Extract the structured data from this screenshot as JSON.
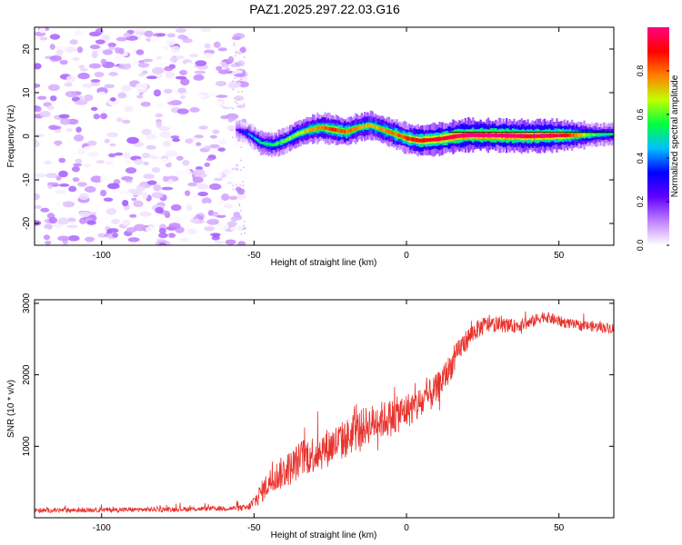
{
  "title": "PAZ1.2025.297.22.03.G16",
  "chart_data": [
    {
      "type": "heatmap",
      "name": "spectrogram",
      "xlabel": "Height of straight line (km)",
      "ylabel": "Frequency (Hz)",
      "xlim": [
        -122,
        68
      ],
      "ylim": [
        -25,
        25
      ],
      "xticks": [
        -100,
        -50,
        0,
        50
      ],
      "xtick_labels": [
        "-100",
        "-50",
        "0",
        "50"
      ],
      "yticks": [
        -20,
        -10,
        0,
        10,
        20
      ],
      "ytick_labels": [
        "-20",
        "-10",
        "0",
        "10",
        "20"
      ],
      "noise_region": {
        "x": [
          -122,
          -53
        ],
        "y": [
          -25,
          25
        ],
        "amplitude_range": [
          0.0,
          0.15
        ]
      },
      "ridge": {
        "x": [
          -56,
          -52,
          -48,
          -44,
          -40,
          -36,
          -32,
          -28,
          -24,
          -20,
          -16,
          -12,
          -8,
          -4,
          0,
          4,
          8,
          12,
          16,
          20,
          30,
          40,
          50,
          60,
          68
        ],
        "frequency_hz": [
          1.5,
          0.5,
          -1.5,
          -2.0,
          -1.0,
          0.5,
          1.5,
          2.0,
          1.5,
          1.0,
          2.0,
          2.5,
          1.5,
          0.5,
          -0.5,
          -1.0,
          -0.8,
          -0.5,
          0.0,
          0.3,
          0.2,
          0.0,
          0.2,
          0.3,
          0.5
        ],
        "amplitude": [
          0.2,
          0.4,
          0.5,
          0.55,
          0.6,
          0.65,
          0.75,
          0.8,
          0.85,
          0.8,
          0.75,
          0.7,
          0.75,
          0.8,
          0.85,
          0.9,
          0.92,
          0.95,
          0.97,
          1.0,
          1.0,
          0.98,
          0.95,
          0.6,
          0.45
        ]
      },
      "colorbar": {
        "label": "Normalized spectral amplitude",
        "range": [
          0.0,
          1.0
        ],
        "ticks": [
          0.0,
          0.2,
          0.4,
          0.6,
          0.8
        ],
        "tick_labels": [
          "0.0",
          "0.2",
          "0.4",
          "0.6",
          "0.8"
        ],
        "colors": [
          "#ffffff",
          "#c080ff",
          "#6000ff",
          "#0000ff",
          "#00c0ff",
          "#00ff40",
          "#c0ff00",
          "#ff8000",
          "#ff0000",
          "#ff0080"
        ]
      }
    },
    {
      "type": "line",
      "name": "snr",
      "xlabel": "Height of straight line (km)",
      "ylabel": "SNR (10 * v/v)",
      "xlim": [
        -122,
        68
      ],
      "ylim": [
        0,
        3050
      ],
      "xticks": [
        -100,
        -50,
        0,
        50
      ],
      "xtick_labels": [
        "-100",
        "-50",
        "0",
        "50"
      ],
      "yticks": [
        1000,
        2000,
        3000
      ],
      "ytick_labels": [
        "1000",
        "2000",
        "3000"
      ],
      "color": "#e8322c",
      "envelope": {
        "x": [
          -122,
          -100,
          -80,
          -60,
          -52,
          -50,
          -45,
          -42,
          -38,
          -34,
          -30,
          -25,
          -20,
          -15,
          -10,
          -5,
          0,
          5,
          10,
          15,
          18,
          22,
          26,
          30,
          35,
          40,
          45,
          50,
          55,
          60,
          68
        ],
        "mean": [
          100,
          110,
          115,
          130,
          140,
          220,
          500,
          600,
          700,
          850,
          900,
          1000,
          1100,
          1250,
          1350,
          1400,
          1500,
          1600,
          1800,
          2150,
          2400,
          2600,
          2700,
          2700,
          2680,
          2720,
          2820,
          2750,
          2700,
          2680,
          2650
        ],
        "spread": [
          60,
          60,
          60,
          60,
          80,
          200,
          350,
          400,
          450,
          480,
          500,
          500,
          500,
          500,
          480,
          480,
          450,
          450,
          400,
          350,
          300,
          250,
          220,
          180,
          170,
          160,
          150,
          140,
          130,
          130,
          130
        ]
      }
    }
  ]
}
